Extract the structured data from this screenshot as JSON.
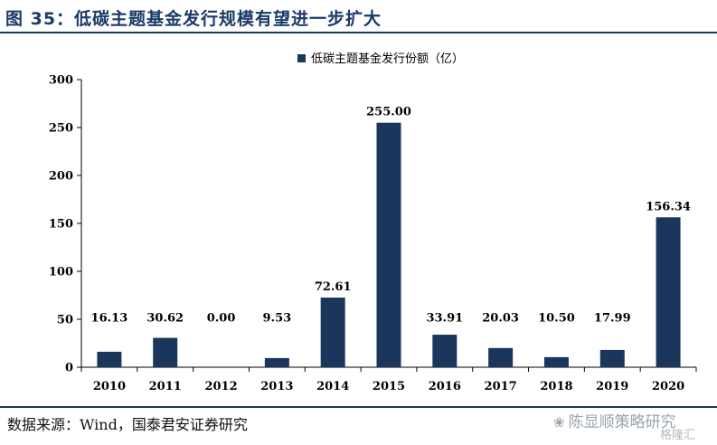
{
  "title": "图 35：低碳主题基金发行规模有望进一步扩大",
  "source": "数据来源：Wind，国泰君安证券研究",
  "watermark": {
    "brand": "陈显顺策略研究",
    "secondary": "格隆汇"
  },
  "colors": {
    "bar": "#1b365d",
    "title": "#1a3a68"
  },
  "chart_data": {
    "type": "bar",
    "categories": [
      "2010",
      "2011",
      "2012",
      "2013",
      "2014",
      "2015",
      "2016",
      "2017",
      "2018",
      "2019",
      "2020"
    ],
    "series": [
      {
        "name": "低碳主题基金发行份额（亿）",
        "values": [
          16.13,
          30.62,
          0.0,
          9.53,
          72.61,
          255.0,
          33.91,
          20.03,
          10.5,
          17.99,
          156.34
        ],
        "labels": [
          "16.13",
          "30.62",
          "0.00",
          "9.53",
          "72.61",
          "255.00",
          "33.91",
          "20.03",
          "10.50",
          "17.99",
          "156.34"
        ]
      }
    ],
    "ylim": [
      0,
      300
    ],
    "yticks": [
      0,
      50,
      100,
      150,
      200,
      250,
      300
    ],
    "title": "",
    "xlabel": "",
    "ylabel": "",
    "legend_position": "top-center",
    "grid": false
  }
}
